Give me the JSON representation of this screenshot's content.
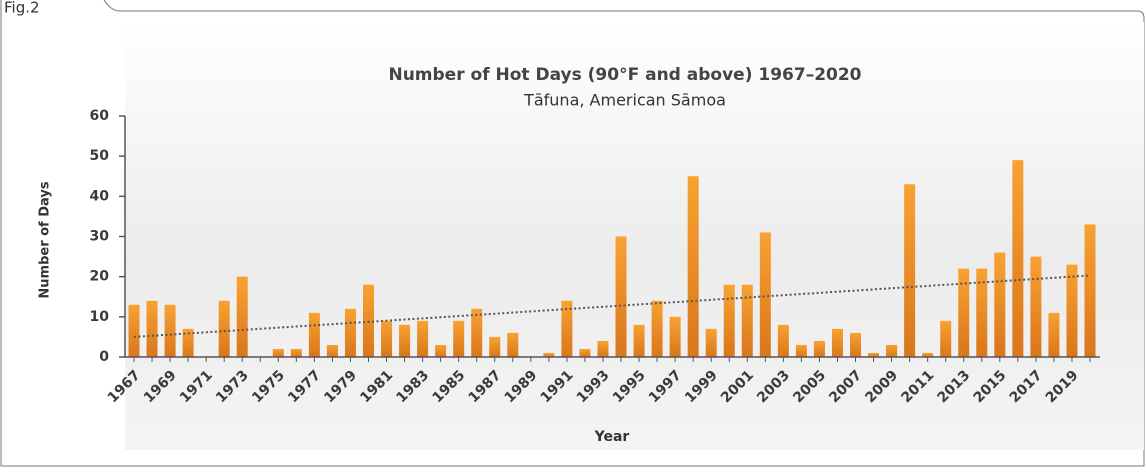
{
  "fig_label": "Fig.2",
  "chart_data": {
    "type": "bar",
    "title": "Number of Hot Days (90°F and above) 1967–2020",
    "subtitle": "Tāfuna, American Sāmoa",
    "x_label": "Year",
    "y_label": "Number of Days",
    "categories": [
      "1967",
      null,
      "1969",
      null,
      "1971",
      null,
      "1973",
      null,
      "1975",
      null,
      "1977",
      null,
      "1979",
      null,
      "1981",
      null,
      "1983",
      null,
      "1985",
      null,
      "1987",
      null,
      "1989",
      null,
      "1991",
      null,
      "1993",
      null,
      "1995",
      null,
      "1997",
      null,
      "1999",
      null,
      "2001",
      null,
      "2003",
      null,
      "2005",
      null,
      "2007",
      null,
      "2009",
      null,
      "2011",
      null,
      "2013",
      null,
      "2015",
      null,
      "2017",
      null,
      "2019",
      null
    ],
    "values": [
      13,
      14,
      13,
      7,
      0,
      14,
      20,
      0,
      2,
      2,
      11,
      3,
      12,
      18,
      9,
      8,
      9,
      3,
      9,
      12,
      5,
      6,
      0,
      1,
      14,
      2,
      4,
      30,
      8,
      14,
      10,
      45,
      7,
      18,
      18,
      31,
      8,
      3,
      4,
      7,
      6,
      1,
      3,
      43,
      1,
      9,
      22,
      22,
      26,
      49,
      25,
      11,
      23,
      33
    ],
    "color": "#f49a2a",
    "trendline": {
      "values": [
        5,
        20.3
      ],
      "color": "#555555"
    },
    "ylim": [
      0,
      60
    ],
    "yticks": [
      0,
      10,
      20,
      30,
      40,
      50,
      60
    ],
    "grid": false
  }
}
